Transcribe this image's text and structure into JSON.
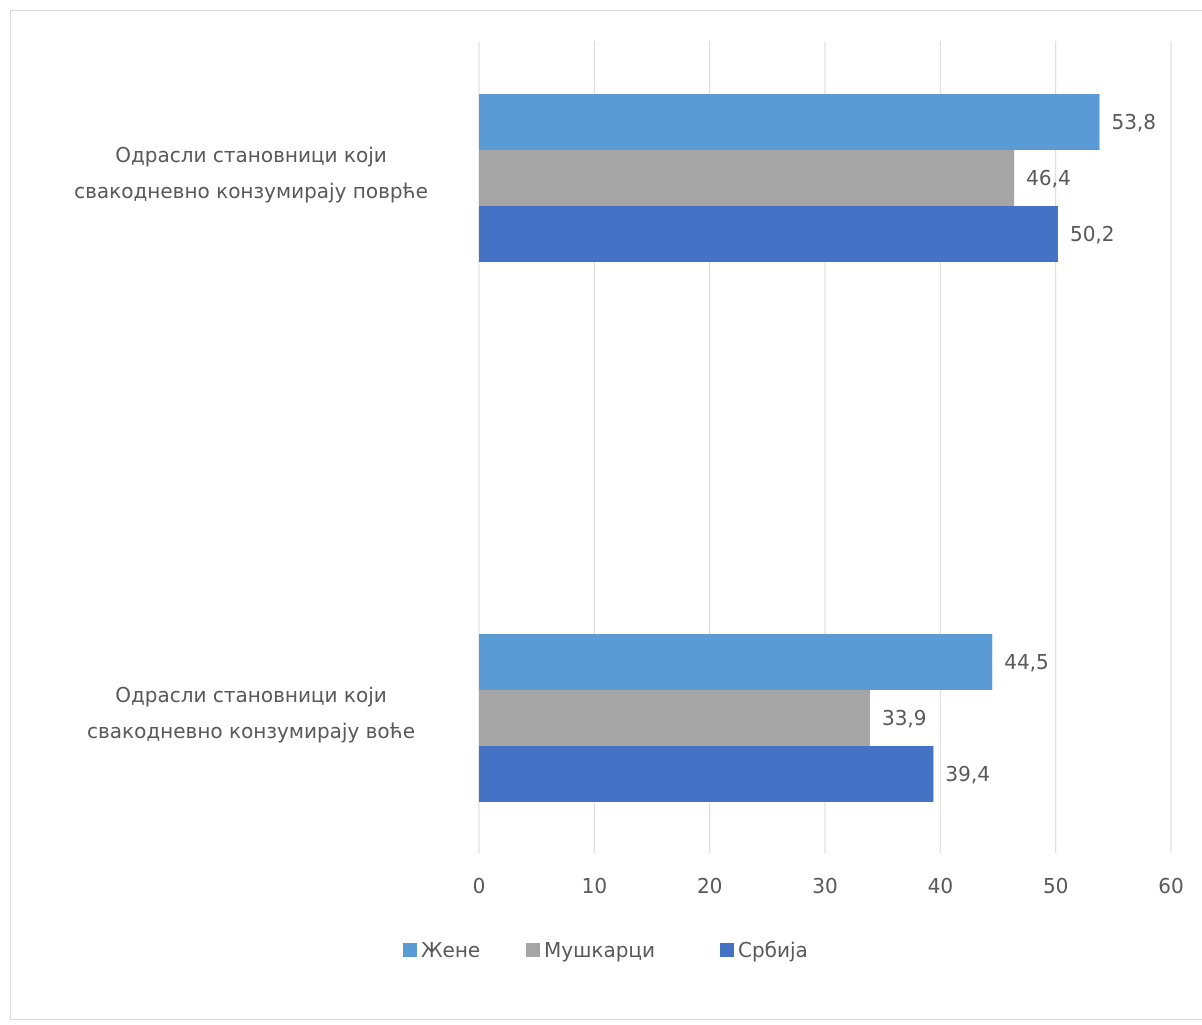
{
  "chart_data": {
    "type": "bar",
    "orientation": "horizontal",
    "categories": [
      "Одрасли становници који свакодневно конзумирају воће",
      "Одрасли становници који свакодневно конзумирају поврће"
    ],
    "category_lines": [
      [
        "Одрасли становници који",
        "свакодневно конзумирају воће"
      ],
      [
        "Одрасли становници који",
        "свакодневно конзумирају поврће"
      ]
    ],
    "series": [
      {
        "name": "Србија",
        "color": "#4472c4",
        "values": [
          39.4,
          50.2
        ],
        "labels": [
          "39,4",
          "50,2"
        ]
      },
      {
        "name": "Мушкарци",
        "color": "#a5a5a5",
        "values": [
          33.9,
          46.4
        ],
        "labels": [
          "33,9",
          "46,4"
        ]
      },
      {
        "name": "Жене",
        "color": "#5b9bd5",
        "values": [
          44.5,
          53.8
        ],
        "labels": [
          "44,5",
          "53,8"
        ]
      }
    ],
    "legend_order": [
      "Жене",
      "Мушкарци",
      "Србија"
    ],
    "xlim": [
      0,
      60
    ],
    "xticks": [
      "0",
      "10",
      "20",
      "30",
      "40",
      "50",
      "60"
    ],
    "grid": true,
    "legend_position": "bottom",
    "title": "",
    "xlabel": "",
    "ylabel": ""
  }
}
